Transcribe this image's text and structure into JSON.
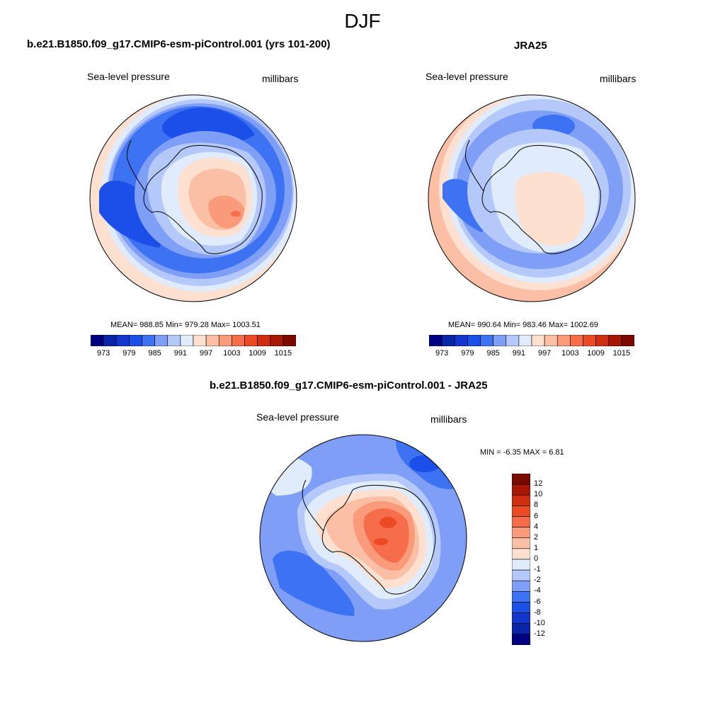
{
  "main_title": "DJF",
  "panels": {
    "model": {
      "title": "b.e21.B1850.f09_g17.CMIP6-esm-piControl.001 (yrs 101-200)",
      "left_label": "Sea-level pressure",
      "right_label": "millibars",
      "stats": "MEAN= 988.85  Min= 979.28  Max= 1003.51"
    },
    "obs": {
      "title": "JRA25",
      "left_label": "Sea-level pressure",
      "right_label": "millibars",
      "stats": "MEAN= 990.64  Min= 983.46  Max= 1002.69"
    },
    "diff": {
      "title": "b.e21.B1850.f09_g17.CMIP6-esm-piControl.001 - JRA25",
      "left_label": "Sea-level pressure",
      "right_label": "millibars",
      "stats": "MIN =  -6.35 MAX =   6.81"
    }
  },
  "colorbar_abs": {
    "colors": [
      "#000080",
      "#0a24a8",
      "#1337cc",
      "#1c4ee8",
      "#3d72f2",
      "#7f9ef5",
      "#b4c8f9",
      "#e0ebfc",
      "#fde0cf",
      "#fbbfa6",
      "#f99a7b",
      "#f56d4a",
      "#ec4a22",
      "#d02e10",
      "#a81605",
      "#7a0a00"
    ],
    "tick_labels": [
      "973",
      "979",
      "985",
      "991",
      "997",
      "1003",
      "1009",
      "1015"
    ]
  },
  "colorbar_diff": {
    "colors": [
      "#7a0a00",
      "#a81605",
      "#d02e10",
      "#ec4a22",
      "#f56d4a",
      "#f99a7b",
      "#fbbfa6",
      "#fde0cf",
      "#e0ebfc",
      "#b4c8f9",
      "#7f9ef5",
      "#3d72f2",
      "#1c4ee8",
      "#1337cc",
      "#0a24a8",
      "#000080"
    ],
    "tick_labels": [
      "12",
      "10",
      "8",
      "6",
      "4",
      "2",
      "1",
      "0",
      "-1",
      "-2",
      "-4",
      "-6",
      "-8",
      "-10",
      "-12"
    ]
  }
}
